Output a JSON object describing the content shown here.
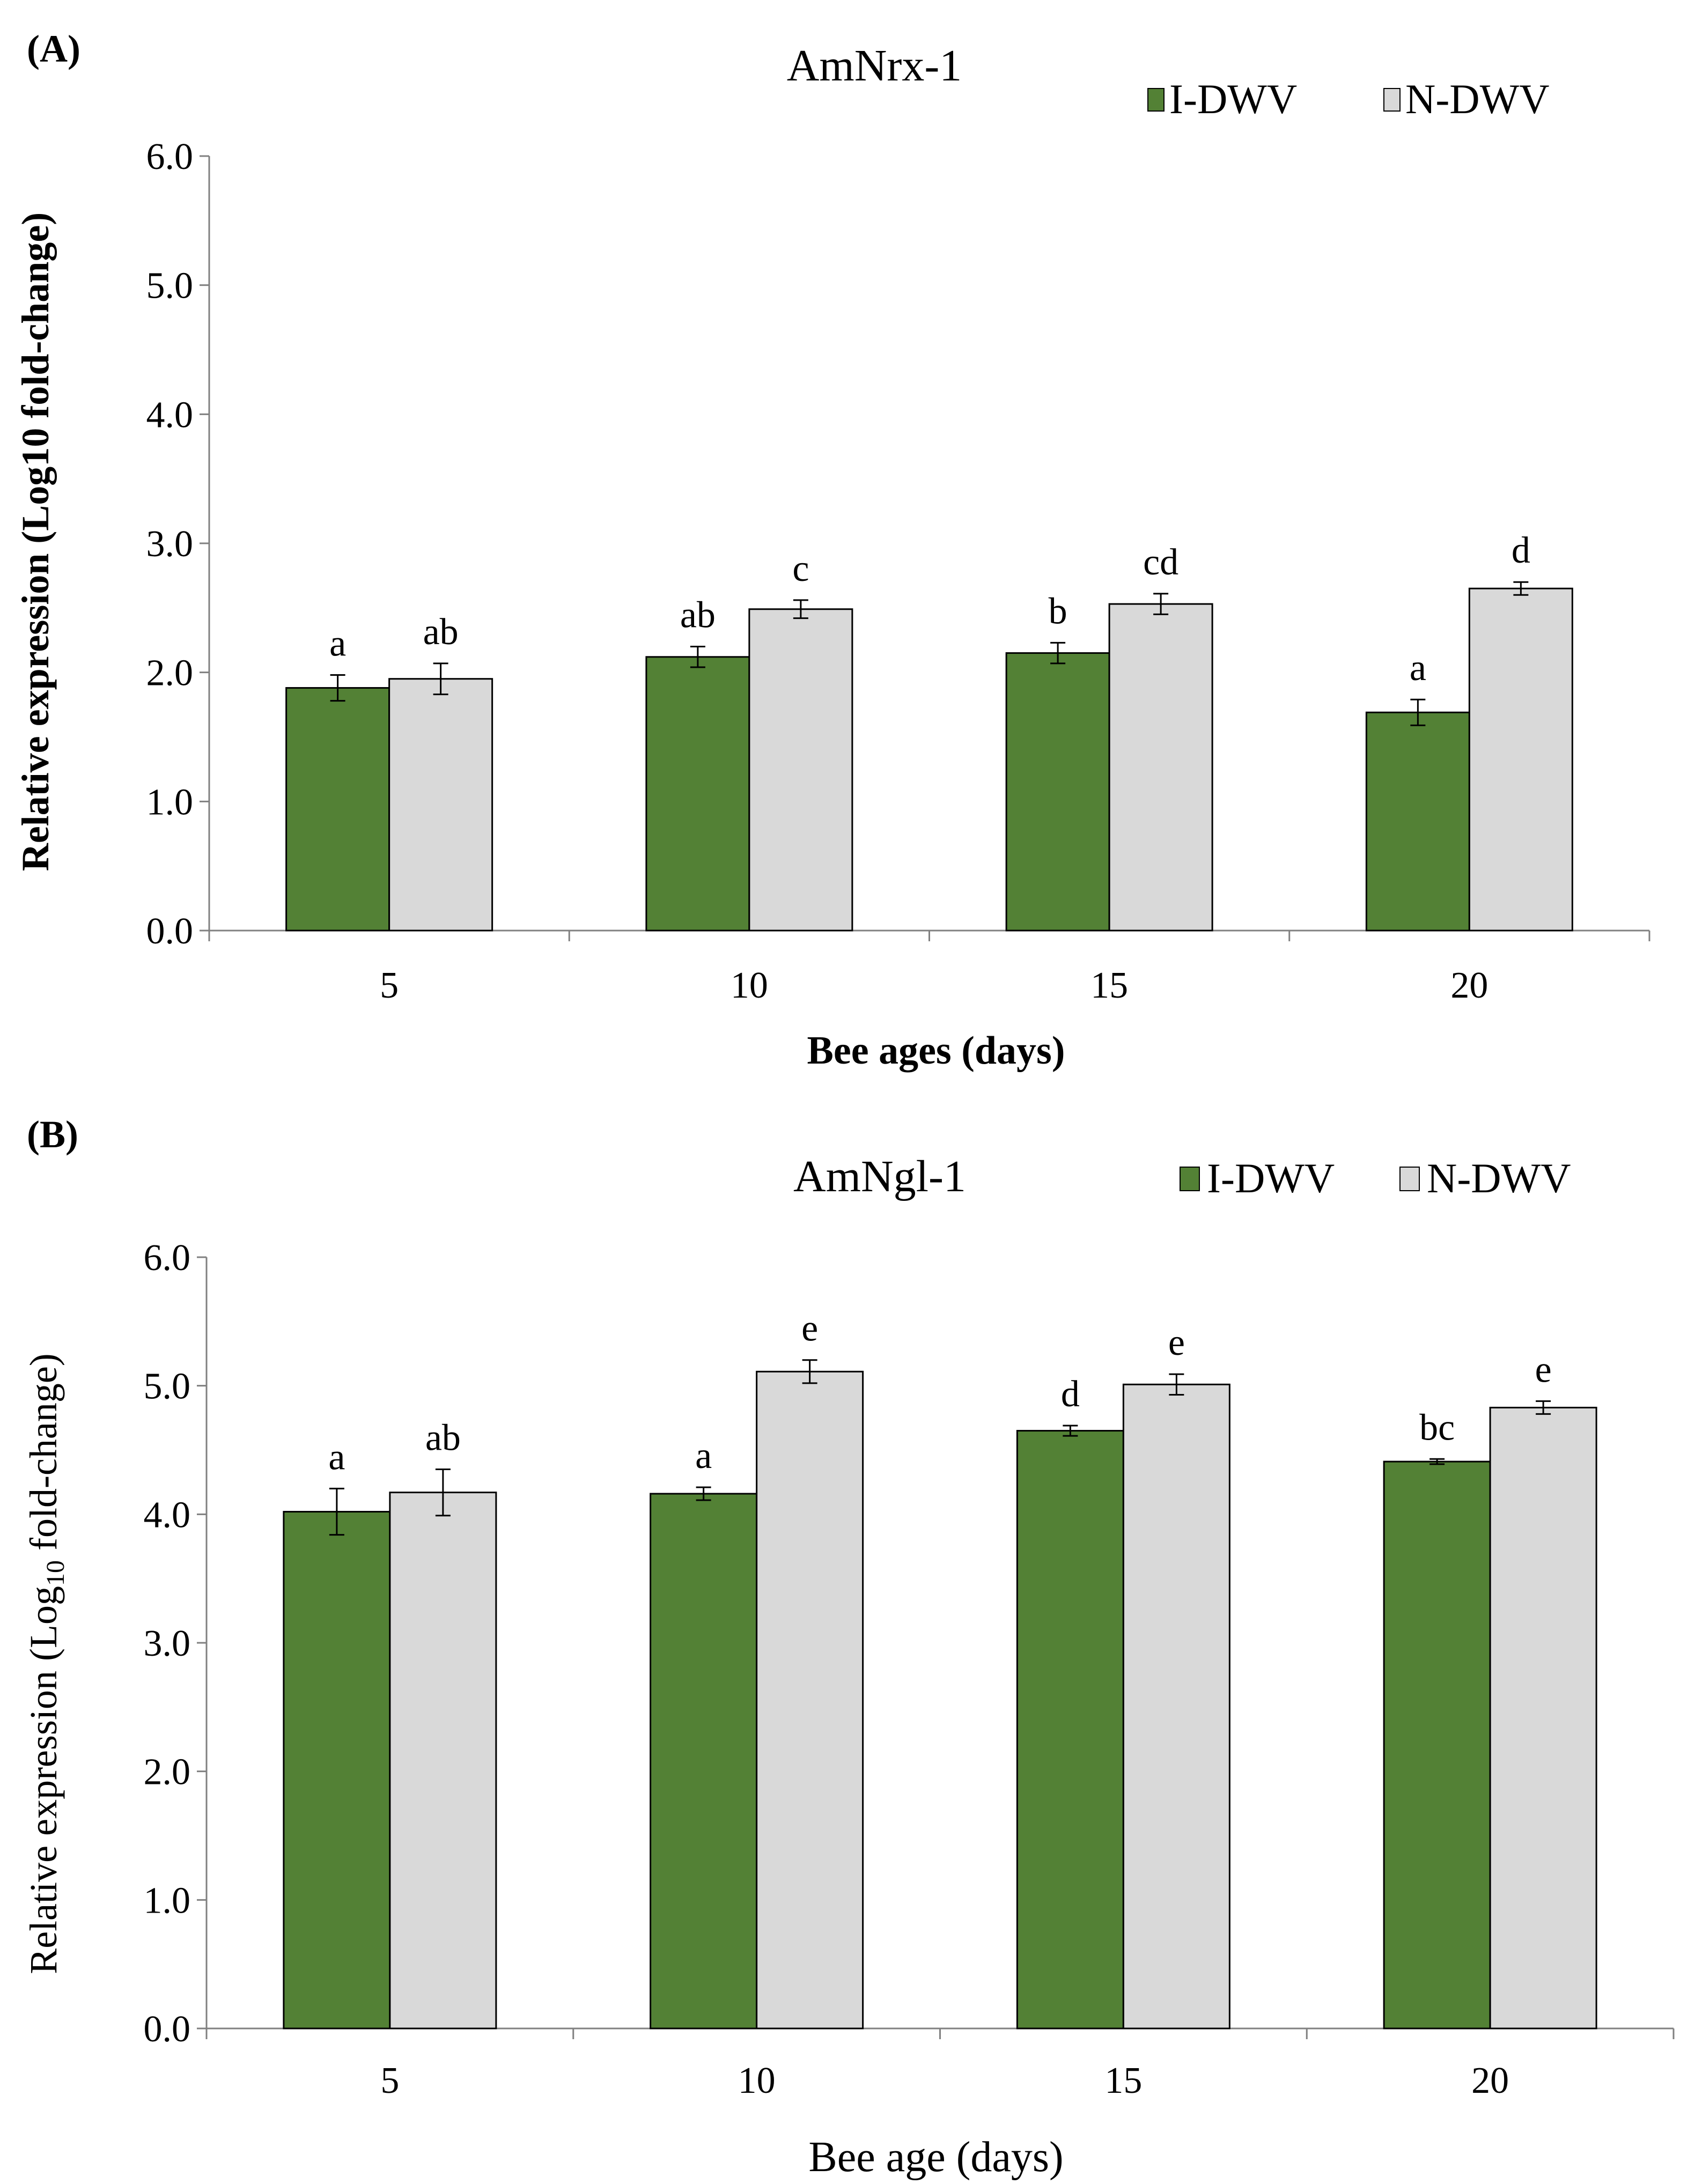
{
  "colors": {
    "idwv": "#538135",
    "ndwv": "#D9D9D9",
    "axis": "#808080",
    "outline": "#000000"
  },
  "chart_data": [
    {
      "type": "bar",
      "panel_label": "(A)",
      "title": "AmNrx-1",
      "xlabel": "Bee ages (days)",
      "ylabel": "Relative expression (Log10 fold-change)",
      "ylabel_bold": true,
      "xlabel_bold": true,
      "categories": [
        "5",
        "10",
        "15",
        "20"
      ],
      "ylim": [
        0,
        6
      ],
      "yticks": [
        "0.0",
        "1.0",
        "2.0",
        "3.0",
        "4.0",
        "5.0",
        "6.0"
      ],
      "legend_position": "top-right",
      "grid": false,
      "series": [
        {
          "name": "I-DWV",
          "color": "#538135",
          "values": [
            1.88,
            2.12,
            2.15,
            1.69
          ],
          "errors": [
            0.1,
            0.08,
            0.08,
            0.1
          ],
          "letters": [
            "a",
            "ab",
            "b",
            "a"
          ]
        },
        {
          "name": "N-DWV",
          "color": "#D9D9D9",
          "values": [
            1.95,
            2.49,
            2.53,
            2.65
          ],
          "errors": [
            0.12,
            0.07,
            0.08,
            0.05
          ],
          "letters": [
            "ab",
            "c",
            "cd",
            "d"
          ]
        }
      ]
    },
    {
      "type": "bar",
      "panel_label": "(B)",
      "title": "AmNgl-1",
      "xlabel": "Bee age (days)",
      "ylabel": "Relative expression (Log10 fold-change)",
      "ylabel_prefix": "Relative expression (Log",
      "ylabel_subscript": "10",
      "ylabel_suffix": " fold-change)",
      "ylabel_bold": false,
      "xlabel_bold": false,
      "categories": [
        "5",
        "10",
        "15",
        "20"
      ],
      "ylim": [
        0,
        6
      ],
      "yticks": [
        "0.0",
        "1.0",
        "2.0",
        "3.0",
        "4.0",
        "5.0",
        "6.0"
      ],
      "legend_position": "top-right",
      "grid": false,
      "series": [
        {
          "name": "I-DWV",
          "color": "#538135",
          "values": [
            4.02,
            4.16,
            4.65,
            4.41
          ],
          "errors": [
            0.18,
            0.05,
            0.04,
            0.02
          ],
          "letters": [
            "a",
            "a",
            "d",
            "bc"
          ]
        },
        {
          "name": "N-DWV",
          "color": "#D9D9D9",
          "values": [
            4.17,
            5.11,
            5.01,
            4.83
          ],
          "errors": [
            0.18,
            0.09,
            0.08,
            0.05
          ],
          "letters": [
            "ab",
            "e",
            "e",
            "e"
          ]
        }
      ]
    }
  ]
}
